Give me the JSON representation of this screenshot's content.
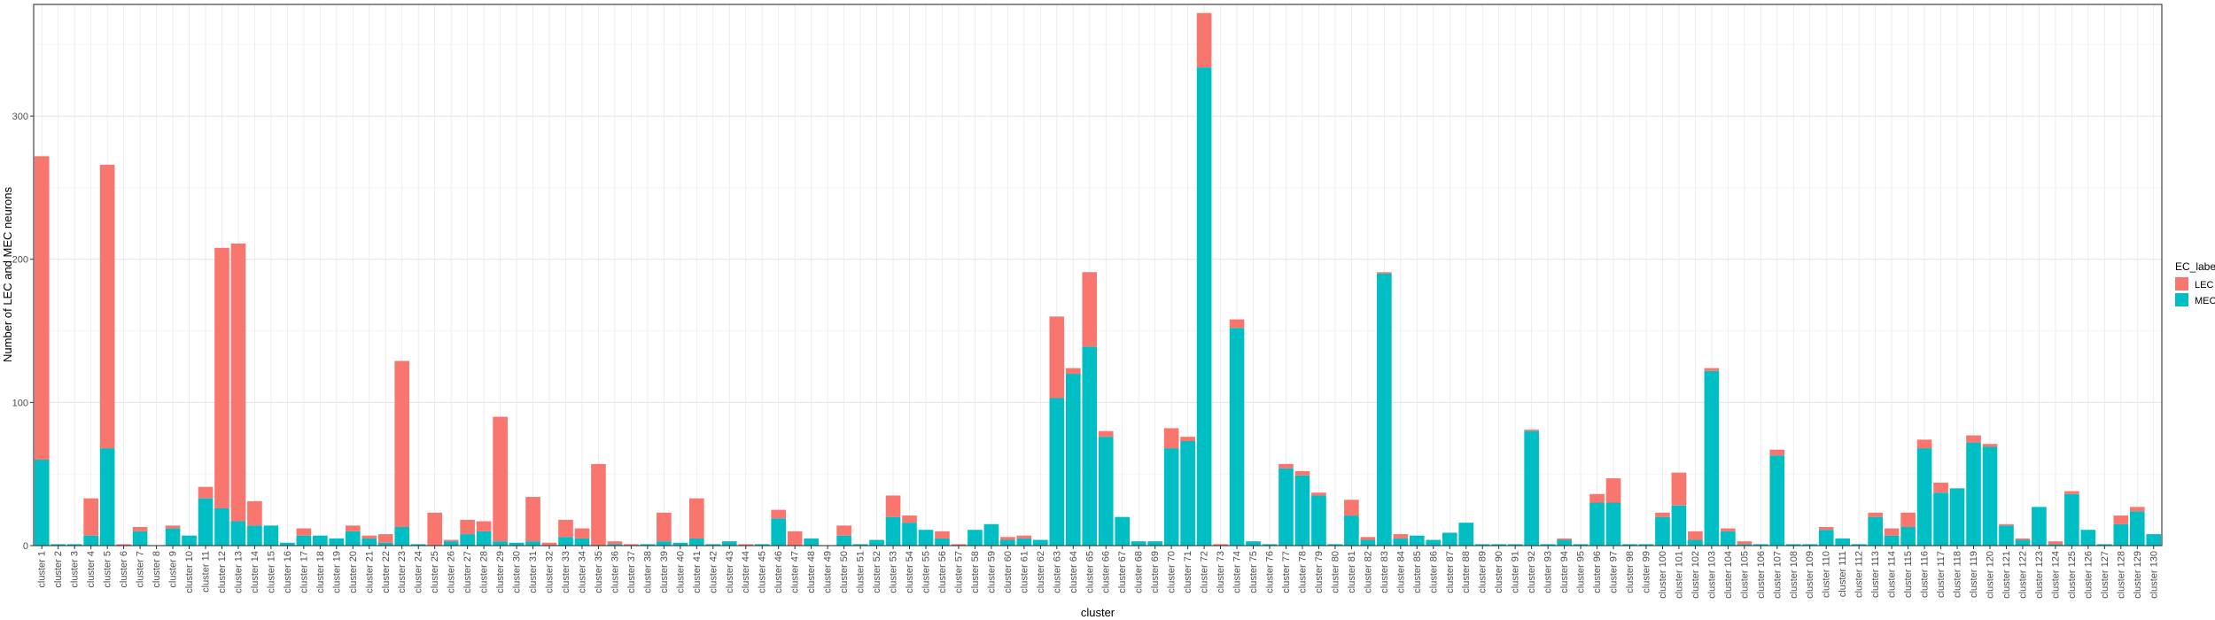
{
  "chart_data": {
    "type": "bar",
    "stacked": true,
    "xlabel": "cluster",
    "ylabel": "Number of LEC and MEC neurons",
    "ylim": [
      0,
      378
    ],
    "yticks": [
      0,
      100,
      200,
      300
    ],
    "grid": true,
    "legend": {
      "title": "EC_label",
      "position": "right",
      "entries": [
        "LEC",
        "MEC"
      ]
    },
    "categories": [
      "cluster 1",
      "cluster 2",
      "cluster 3",
      "cluster 4",
      "cluster 5",
      "cluster 6",
      "cluster 7",
      "cluster 8",
      "cluster 9",
      "cluster 10",
      "cluster 11",
      "cluster 12",
      "cluster 13",
      "cluster 14",
      "cluster 15",
      "cluster 16",
      "cluster 17",
      "cluster 18",
      "cluster 19",
      "cluster 20",
      "cluster 21",
      "cluster 22",
      "cluster 23",
      "cluster 24",
      "cluster 25",
      "cluster 26",
      "cluster 27",
      "cluster 28",
      "cluster 29",
      "cluster 30",
      "cluster 31",
      "cluster 32",
      "cluster 33",
      "cluster 34",
      "cluster 35",
      "cluster 36",
      "cluster 37",
      "cluster 38",
      "cluster 39",
      "cluster 40",
      "cluster 41",
      "cluster 42",
      "cluster 43",
      "cluster 44",
      "cluster 45",
      "cluster 46",
      "cluster 47",
      "cluster 48",
      "cluster 49",
      "cluster 50",
      "cluster 51",
      "cluster 52",
      "cluster 53",
      "cluster 54",
      "cluster 55",
      "cluster 56",
      "cluster 57",
      "cluster 58",
      "cluster 59",
      "cluster 60",
      "cluster 61",
      "cluster 62",
      "cluster 63",
      "cluster 64",
      "cluster 65",
      "cluster 66",
      "cluster 67",
      "cluster 68",
      "cluster 69",
      "cluster 70",
      "cluster 71",
      "cluster 72",
      "cluster 73",
      "cluster 74",
      "cluster 75",
      "cluster 76",
      "cluster 77",
      "cluster 78",
      "cluster 79",
      "cluster 80",
      "cluster 81",
      "cluster 82",
      "cluster 83",
      "cluster 84",
      "cluster 85",
      "cluster 86",
      "cluster 87",
      "cluster 88",
      "cluster 89",
      "cluster 90",
      "cluster 91",
      "cluster 92",
      "cluster 93",
      "cluster 94",
      "cluster 95",
      "cluster 96",
      "cluster 97",
      "cluster 98",
      "cluster 99",
      "cluster 100",
      "cluster 101",
      "cluster 102",
      "cluster 103",
      "cluster 104",
      "cluster 105",
      "cluster 106",
      "cluster 107",
      "cluster 108",
      "cluster 109",
      "cluster 110",
      "cluster 111",
      "cluster 112",
      "cluster 113",
      "cluster 114",
      "cluster 115",
      "cluster 116",
      "cluster 117",
      "cluster 118",
      "cluster 119",
      "cluster 120",
      "cluster 121",
      "cluster 122",
      "cluster 123",
      "cluster 124",
      "cluster 125",
      "cluster 126",
      "cluster 127",
      "cluster 128",
      "cluster 129",
      "cluster 130"
    ],
    "series": [
      {
        "name": "LEC",
        "color": "#F8766D",
        "values": [
          212,
          0,
          0,
          26,
          198,
          1,
          3,
          0,
          2,
          0,
          8,
          182,
          194,
          17,
          0,
          0,
          5,
          0,
          0,
          4,
          2,
          6,
          116,
          0,
          23,
          1,
          10,
          7,
          87,
          0,
          31,
          2,
          12,
          7,
          57,
          2,
          1,
          0,
          20,
          0,
          28,
          0,
          0,
          1,
          0,
          6,
          10,
          0,
          0,
          7,
          0,
          0,
          15,
          5,
          0,
          5,
          1,
          0,
          0,
          2,
          2,
          0,
          57,
          4,
          52,
          4,
          0,
          0,
          0,
          14,
          3,
          38,
          1,
          6,
          0,
          0,
          3,
          3,
          2,
          0,
          11,
          2,
          1,
          3,
          0,
          0,
          0,
          0,
          0,
          0,
          0,
          1,
          0,
          1,
          0,
          6,
          17,
          0,
          0,
          3,
          23,
          6,
          2,
          2,
          2,
          0,
          4,
          0,
          0,
          2,
          0,
          0,
          3,
          5,
          10,
          6,
          7,
          0,
          5,
          2,
          1,
          1,
          0,
          2,
          2,
          0,
          0,
          6,
          3,
          0
        ]
      },
      {
        "name": "MEC",
        "color": "#00BFC4",
        "values": [
          60,
          1,
          1,
          7,
          68,
          0,
          10,
          0,
          12,
          7,
          33,
          26,
          17,
          14,
          14,
          2,
          7,
          7,
          5,
          10,
          5,
          2,
          13,
          1,
          0,
          3,
          8,
          10,
          3,
          2,
          3,
          0,
          6,
          5,
          0,
          1,
          0,
          1,
          3,
          2,
          5,
          1,
          3,
          0,
          1,
          19,
          0,
          5,
          0,
          7,
          1,
          4,
          20,
          16,
          11,
          5,
          0,
          11,
          15,
          4,
          5,
          4,
          103,
          120,
          139,
          76,
          20,
          3,
          3,
          68,
          73,
          334,
          0,
          152,
          3,
          1,
          54,
          49,
          35,
          1,
          21,
          4,
          190,
          5,
          7,
          4,
          9,
          16,
          1,
          1,
          1,
          80,
          1,
          4,
          1,
          30,
          30,
          1,
          1,
          20,
          28,
          4,
          122,
          10,
          1,
          1,
          63,
          1,
          1,
          11,
          5,
          1,
          20,
          7,
          13,
          68,
          37,
          40,
          72,
          69,
          14,
          4,
          27,
          1,
          36,
          11,
          1,
          15,
          24,
          8
        ]
      }
    ]
  }
}
